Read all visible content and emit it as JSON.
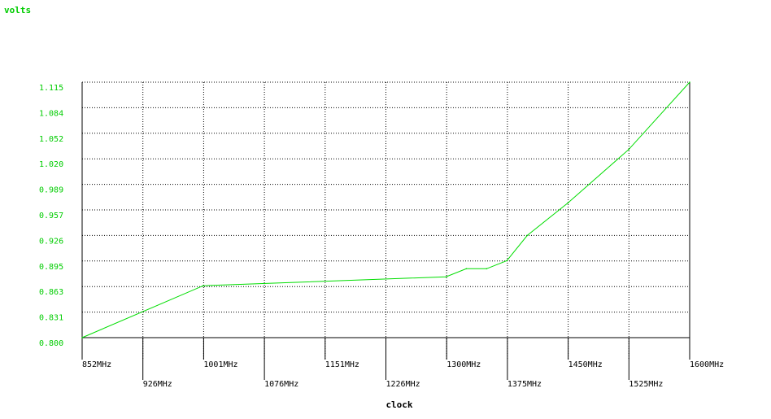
{
  "chart_data": {
    "type": "line",
    "title": "",
    "ylabel": "volts",
    "xlabel": "clock",
    "x_ticks": [
      "852MHz",
      "926MHz",
      "1001MHz",
      "1076MHz",
      "1151MHz",
      "1226MHz",
      "1300MHz",
      "1375MHz",
      "1450MHz",
      "1525MHz",
      "1600MHz"
    ],
    "y_ticks": [
      "0.800",
      "0.831",
      "0.863",
      "0.895",
      "0.926",
      "0.957",
      "0.989",
      "1.020",
      "1.052",
      "1.084",
      "1.115"
    ],
    "xlim": [
      852,
      1600
    ],
    "ylim": [
      0.8,
      1.115
    ],
    "grid": true,
    "series": [
      {
        "x": [
          852,
          1001,
          1300,
          1325,
          1350,
          1375,
          1400,
          1450,
          1525,
          1600
        ],
        "y": [
          0.8,
          0.864,
          0.875,
          0.885,
          0.885,
          0.895,
          0.926,
          0.966,
          1.032,
          1.115
        ]
      }
    ]
  },
  "colors": {
    "line": "#00dd00",
    "axis_text": "#00cc00",
    "grid": "#000000",
    "label_black": "#000000"
  }
}
